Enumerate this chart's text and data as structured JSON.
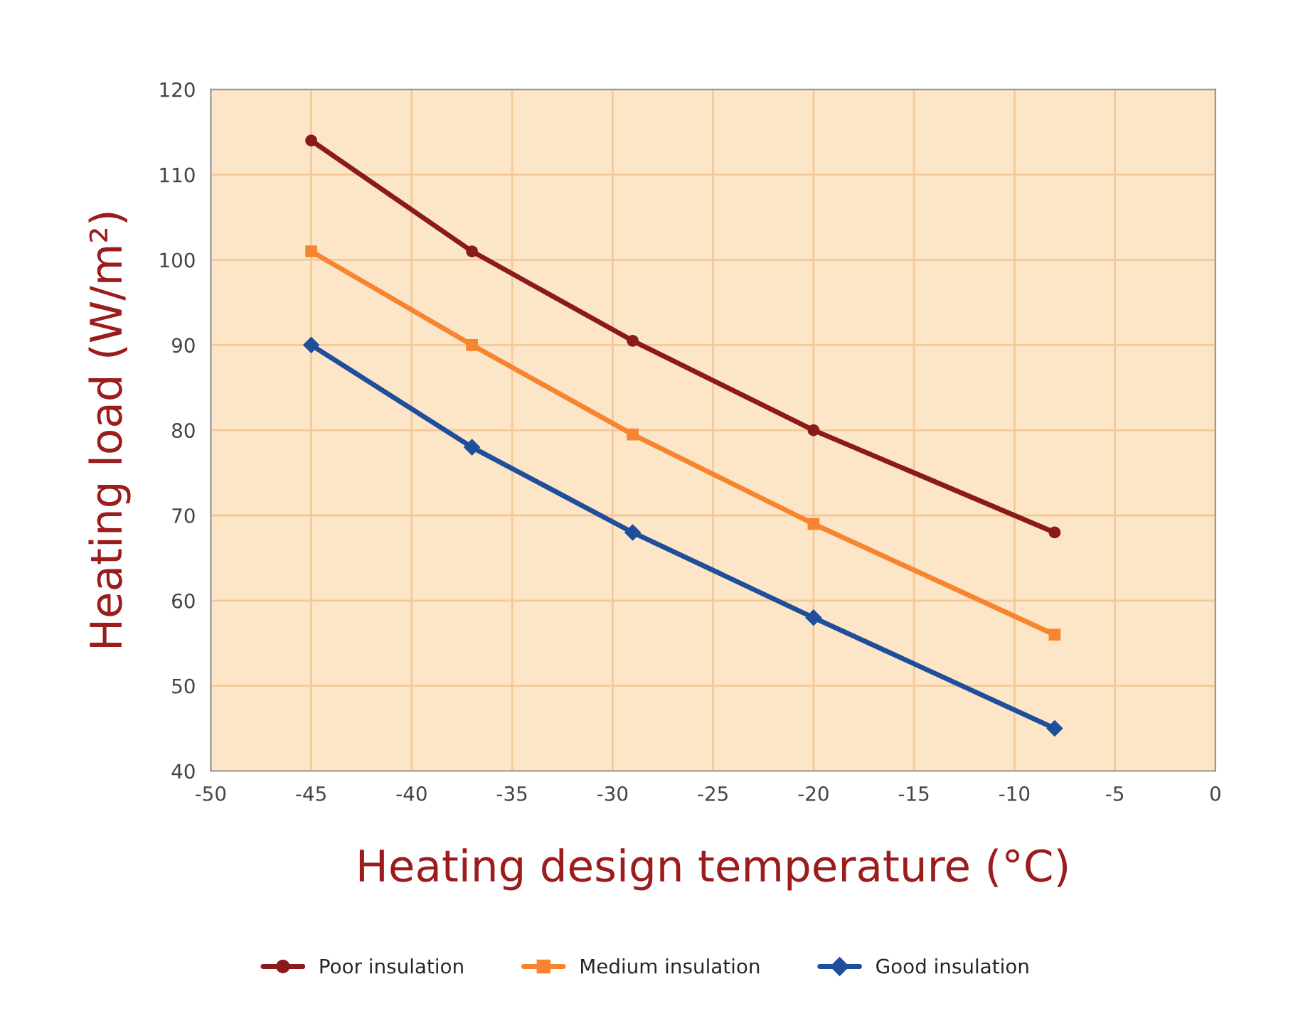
{
  "chart_data": {
    "type": "line",
    "xlabel": "Heating design temperature (°C)",
    "ylabel": "Heating load (W/m²)",
    "x": [
      -45,
      -37,
      -29,
      -20,
      -8
    ],
    "series": [
      {
        "name": "Poor insulation",
        "color": "#8b1a1a",
        "marker": "circle",
        "values": [
          114,
          101,
          90.5,
          80,
          68
        ]
      },
      {
        "name": "Medium insulation",
        "color": "#f7852f",
        "marker": "square",
        "values": [
          101,
          90,
          79.5,
          69,
          56
        ]
      },
      {
        "name": "Good insulation",
        "color": "#1f4e9a",
        "marker": "diamond",
        "values": [
          90,
          78,
          68,
          58,
          45
        ]
      }
    ],
    "xlim": [
      -50,
      0
    ],
    "xticks": [
      -50,
      -45,
      -40,
      -35,
      -30,
      -25,
      -20,
      -15,
      -10,
      -5,
      0
    ],
    "ylim": [
      40,
      120
    ],
    "yticks": [
      40,
      50,
      60,
      70,
      80,
      90,
      100,
      110,
      120
    ],
    "grid": true,
    "legend": "bottom",
    "line_style": "solid"
  }
}
